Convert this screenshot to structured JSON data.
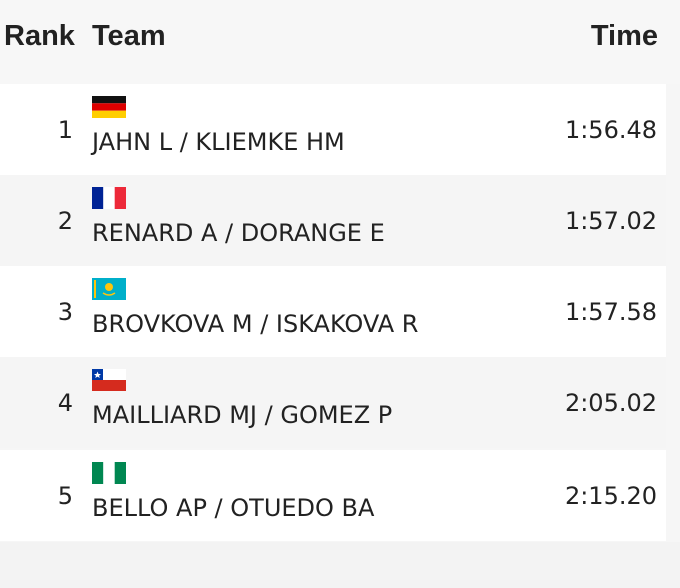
{
  "header": {
    "rank": "Rank",
    "team": "Team",
    "time": "Time"
  },
  "table": {
    "rows": [
      [
        "1",
        "JAHN L / KLIEMKE HM",
        "1:56.48"
      ],
      [
        "2",
        "RENARD A / DORANGE E",
        "1:57.02"
      ],
      [
        "3",
        "BROVKOVA M / ISKAKOVA R",
        "1:57.58"
      ],
      [
        "4",
        "MAILLIARD MJ / GOMEZ P",
        "2:05.02"
      ],
      [
        "5",
        "BELLO AP / OTUEDO BA",
        "2:15.20"
      ]
    ]
  }
}
